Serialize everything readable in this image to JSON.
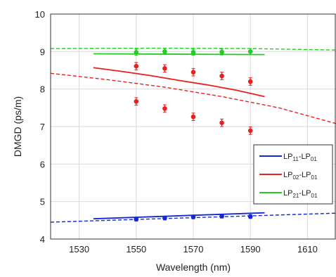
{
  "chart_data": {
    "type": "line",
    "xlabel": "Wavelength (nm)",
    "ylabel": "DMGD (ps/m)",
    "xlim": [
      1520,
      1620
    ],
    "ylim": [
      4,
      10
    ],
    "xticks": [
      1530,
      1550,
      1570,
      1590,
      1610
    ],
    "yticks": [
      4,
      5,
      6,
      7,
      8,
      9,
      10
    ],
    "grid": true,
    "legend_position": "lower-right",
    "legend": [
      {
        "series": "LP11-LP01",
        "main": "LP",
        "sub1": "11",
        "dash": "-LP",
        "sub2": "01",
        "color": "#1428d6"
      },
      {
        "series": "LP02-LP01",
        "main": "LP",
        "sub1": "02",
        "dash": "-LP",
        "sub2": "01",
        "color": "#e8201e"
      },
      {
        "series": "LP21-LP01",
        "main": "LP",
        "sub1": "21",
        "dash": "-LP",
        "sub2": "01",
        "color": "#22cc22"
      }
    ],
    "series": [
      {
        "name": "LP11-LP01",
        "color": "#1428d6",
        "solid_line": {
          "x": [
            1535,
            1595
          ],
          "y": [
            4.54,
            4.7
          ]
        },
        "dashed_line": {
          "x": [
            1520,
            1620
          ],
          "y": [
            4.45,
            4.69
          ]
        },
        "measured": [
          {
            "x": 1550,
            "y": 4.53,
            "err": 0.05
          },
          {
            "x": 1560,
            "y": 4.56,
            "err": 0.05
          },
          {
            "x": 1570,
            "y": 4.59,
            "err": 0.05
          },
          {
            "x": 1580,
            "y": 4.61,
            "err": 0.05
          },
          {
            "x": 1590,
            "y": 4.6,
            "err": 0.05
          }
        ]
      },
      {
        "name": "LP02-LP01",
        "color": "#e8201e",
        "solid_line": {
          "x": [
            1535,
            1545,
            1555,
            1565,
            1575,
            1585,
            1595
          ],
          "y": [
            8.57,
            8.47,
            8.36,
            8.23,
            8.11,
            7.97,
            7.8
          ]
        },
        "dashed_line": {
          "x": [
            1520,
            1540,
            1560,
            1580,
            1600,
            1620
          ],
          "y": [
            8.42,
            8.25,
            8.05,
            7.8,
            7.5,
            7.08
          ]
        },
        "measured": [
          {
            "x": 1550,
            "y": 8.61,
            "err": 0.1
          },
          {
            "x": 1560,
            "y": 8.55,
            "err": 0.1
          },
          {
            "x": 1570,
            "y": 8.45,
            "err": 0.1
          },
          {
            "x": 1580,
            "y": 8.35,
            "err": 0.1
          },
          {
            "x": 1590,
            "y": 8.2,
            "err": 0.1
          },
          {
            "x": 1550,
            "y": 7.67,
            "err": 0.1
          },
          {
            "x": 1560,
            "y": 7.48,
            "err": 0.1
          },
          {
            "x": 1570,
            "y": 7.26,
            "err": 0.1
          },
          {
            "x": 1580,
            "y": 7.1,
            "err": 0.1
          },
          {
            "x": 1590,
            "y": 6.89,
            "err": 0.1
          }
        ]
      },
      {
        "name": "LP21-LP01",
        "color": "#22cc22",
        "solid_line": {
          "x": [
            1535,
            1595
          ],
          "y": [
            8.94,
            8.92
          ]
        },
        "dashed_line": {
          "x": [
            1520,
            1560,
            1590,
            1620
          ],
          "y": [
            9.08,
            9.09,
            9.08,
            9.04
          ]
        },
        "measured": [
          {
            "x": 1550,
            "y": 8.98,
            "err": 0.08
          },
          {
            "x": 1560,
            "y": 9.0,
            "err": 0.08
          },
          {
            "x": 1570,
            "y": 8.98,
            "err": 0.08
          },
          {
            "x": 1580,
            "y": 8.99,
            "err": 0.08
          },
          {
            "x": 1590,
            "y": 9.0,
            "err": 0.08
          }
        ]
      }
    ]
  }
}
